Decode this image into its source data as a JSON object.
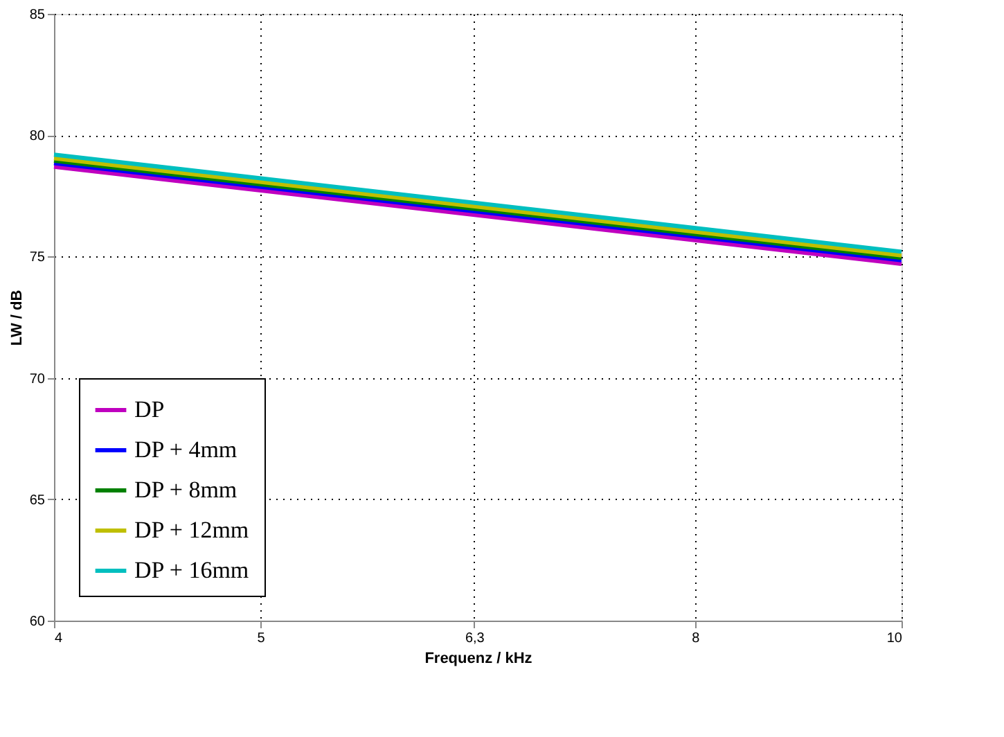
{
  "chart_data": {
    "type": "line",
    "xlabel": "Frequenz / kHz",
    "ylabel": "LW / dB",
    "x": [
      4,
      10
    ],
    "xlim": [
      4,
      10
    ],
    "log": "x",
    "xticks": [
      4,
      5,
      {
        "value": 6.3,
        "label": "6,3"
      },
      8,
      10
    ],
    "ylim": [
      60,
      85
    ],
    "yticks": [
      60,
      65,
      70,
      75,
      80,
      85
    ],
    "grid": true,
    "line_style": "solid",
    "legend": "bottom left",
    "series": [
      {
        "name": "DP",
        "color": "#bf00bf",
        "values": [
          78.7,
          74.7
        ]
      },
      {
        "name": "DP + 4mm",
        "color": "#0000ff",
        "values": [
          78.85,
          74.85
        ]
      },
      {
        "name": "DP + 8mm",
        "color": "#008000",
        "values": [
          78.95,
          74.95
        ]
      },
      {
        "name": "DP + 12mm",
        "color": "#bfbf00",
        "values": [
          79.05,
          75.05
        ]
      },
      {
        "name": "DP + 16mm",
        "color": "#00bfbf",
        "values": [
          79.2,
          75.2
        ]
      }
    ]
  }
}
